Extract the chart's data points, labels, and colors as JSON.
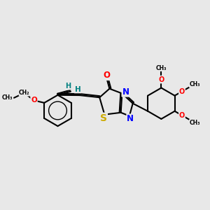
{
  "background_color": "#e8e8e8",
  "bond_color": "#000000",
  "bond_width": 1.5,
  "atom_colors": {
    "N": "#0000ff",
    "O": "#ff0000",
    "S": "#ccaa00",
    "H": "#008080",
    "C": "#000000"
  },
  "font_size": 8.5,
  "figsize": [
    3.0,
    3.0
  ],
  "dpi": 100,
  "xlim": [
    0,
    10
  ],
  "ylim": [
    0,
    10
  ]
}
